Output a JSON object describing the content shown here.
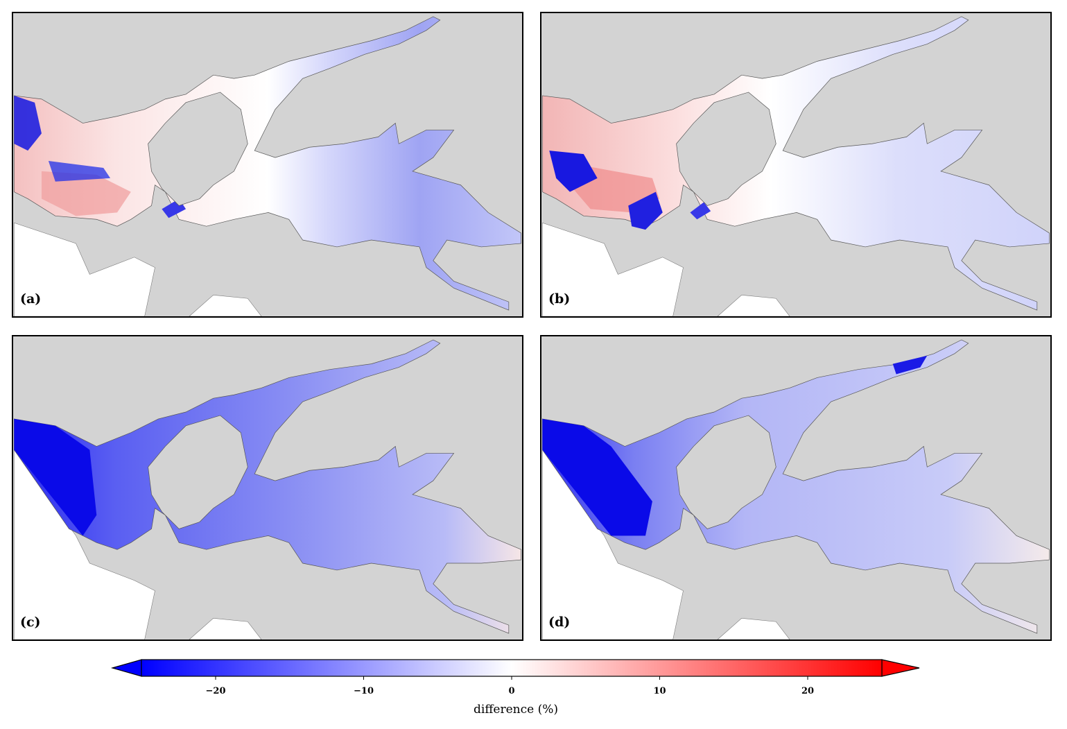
{
  "panels": [
    {
      "id": "a",
      "label": "(a)"
    },
    {
      "id": "b",
      "label": "(b)"
    },
    {
      "id": "c",
      "label": "(c)"
    },
    {
      "id": "d",
      "label": "(d)"
    }
  ],
  "colorbar": {
    "label": "difference (%)",
    "ticks": [
      -20,
      -10,
      0,
      10,
      20
    ],
    "tick_labels": [
      "−20",
      "−10",
      "0",
      "10",
      "20"
    ],
    "range": [
      -26,
      26
    ],
    "extend": "both",
    "colormap": [
      "#0000ff",
      "#ffffff",
      "#ff0000"
    ]
  },
  "colors": {
    "land": "#d3d3d3",
    "offshore": "#ffffff",
    "coastline": "#555555"
  }
}
